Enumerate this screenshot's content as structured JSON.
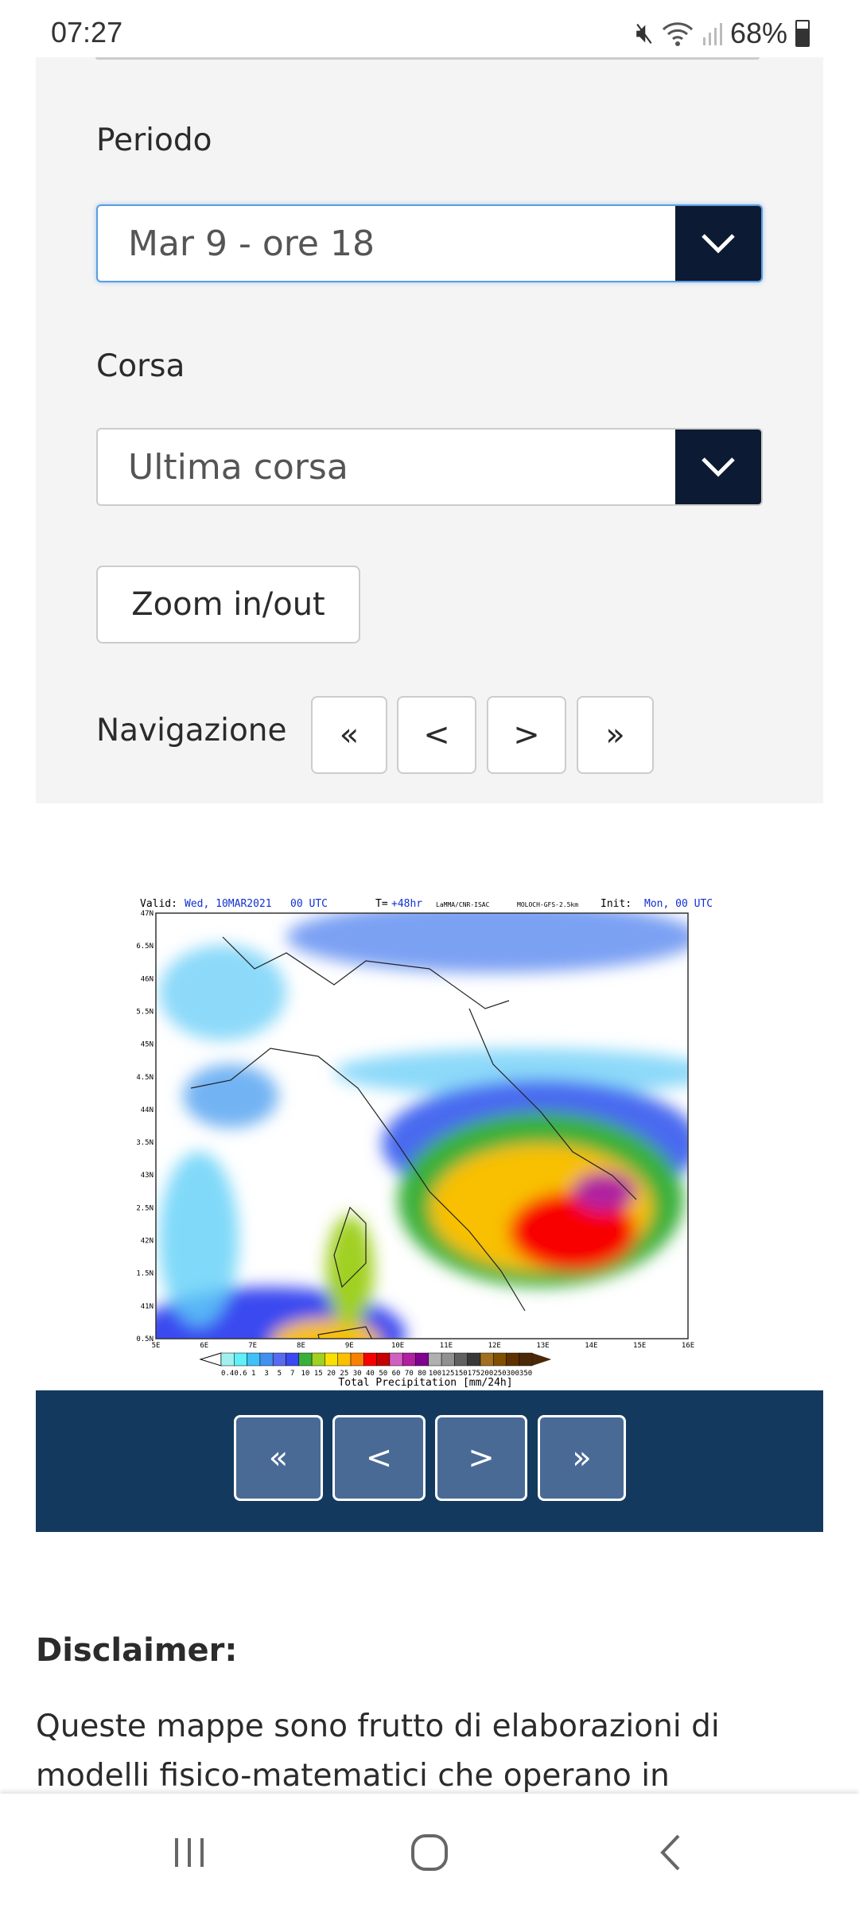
{
  "status_bar": {
    "time": "07:27",
    "battery": "68%",
    "icons": [
      "mute-vibrate-icon",
      "wifi-icon",
      "signal-icon",
      "battery-icon"
    ]
  },
  "form": {
    "periodo_label": "Periodo",
    "periodo_value": "Mar 9 - ore 18",
    "corsa_label": "Corsa",
    "corsa_value": "Ultima corsa",
    "zoom_label": "Zoom in/out",
    "nav_label": "Navigazione",
    "nav_buttons": [
      "«",
      "<",
      ">",
      "»"
    ]
  },
  "map": {
    "valid_label": "Valid:",
    "valid_value": "Wed, 10MAR2021   00 UTC",
    "t_label": "T=",
    "t_value": "+48hr",
    "source": "LaMMA/CNR-ISAC",
    "model": "MOLOCH-GFS-2.5km",
    "init_label": "Init:",
    "init_value": "Mon, 00 UTC",
    "lat_ticks": [
      "47N",
      "6.5N",
      "46N",
      "5.5N",
      "45N",
      "4.5N",
      "44N",
      "3.5N",
      "43N",
      "2.5N",
      "42N",
      "1.5N",
      "41N",
      "0.5N"
    ],
    "lon_ticks": [
      "5E",
      "6E",
      "7E",
      "8E",
      "9E",
      "10E",
      "11E",
      "12E",
      "13E",
      "14E",
      "15E",
      "16E"
    ],
    "legend_values": [
      "0.4",
      "0.6",
      "1",
      "3",
      "5",
      "7",
      "10",
      "15",
      "20",
      "25",
      "30",
      "40",
      "50",
      "60",
      "70",
      "80",
      "100",
      "125",
      "150",
      "175",
      "200",
      "250",
      "300",
      "350"
    ],
    "legend_colors": [
      "#a0f0f0",
      "#60f0f8",
      "#40c0f8",
      "#4090f0",
      "#5a6af0",
      "#3a4af0",
      "#3ab03a",
      "#a0d020",
      "#f8e000",
      "#f8c000",
      "#f88000",
      "#f80000",
      "#c80000",
      "#d060c0",
      "#b020a0",
      "#800090",
      "#b0b0b0",
      "#909090",
      "#606060",
      "#383838",
      "#a07020",
      "#805000",
      "#603000",
      "#4a2808"
    ],
    "legend_title": "Total Precipitation [mm/24h]"
  },
  "map_nav_buttons": [
    "«",
    "<",
    ">",
    "»"
  ],
  "disclaimer": {
    "title": "Disclaimer:",
    "text": "Queste mappe sono frutto di elaborazioni di modelli fisico-matematici che operano in"
  },
  "colors": {
    "select_arrow_bg": "#0d1a33",
    "nav_bar_bg": "#133a5e",
    "nav_button_bg": "#4a6a96",
    "panel_bg": "#f4f4f4"
  }
}
